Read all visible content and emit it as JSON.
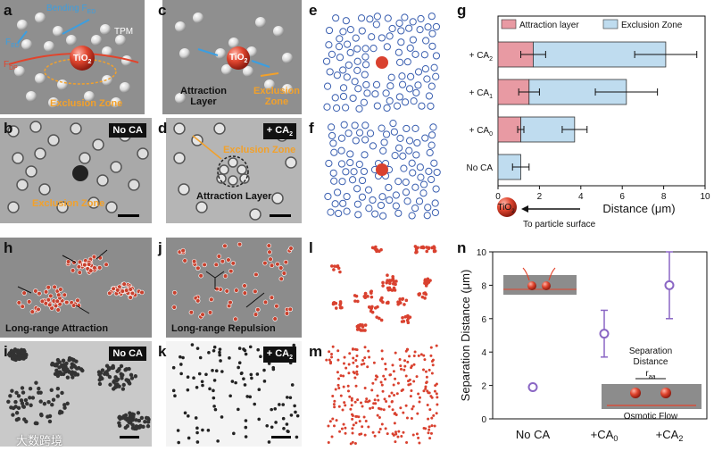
{
  "panel_letters": {
    "a": "a",
    "b": "b",
    "c": "c",
    "d": "d",
    "e": "e",
    "f": "f",
    "g": "g",
    "h": "h",
    "i": "i",
    "j": "j",
    "k": "k",
    "l": "l",
    "m": "m",
    "n": "n"
  },
  "panel_a": {
    "bending": "Bending F",
    "bending_sub": "ED",
    "fed": "F",
    "fed_sub": "ED",
    "fdp": "F",
    "fdp_sub": "DP",
    "tpm": "TPM",
    "tio2": "TiO",
    "tio2_sub": "2",
    "exclusion": "Exclusion Zone"
  },
  "panel_b": {
    "tag": "No CA",
    "exclusion": "Exclusion Zone"
  },
  "panel_c": {
    "tio2": "TiO",
    "tio2_sub": "2",
    "attraction": "Attraction",
    "layer": "Layer",
    "exclusion": "Exclusion",
    "zone": "Zone"
  },
  "panel_d": {
    "tag": "+ CA",
    "tag_sub": "2",
    "exclusion": "Exclusion Zone",
    "attraction": "Attraction Layer"
  },
  "panel_h": {
    "caption": "Long-range Attraction"
  },
  "panel_i": {
    "tag": "No CA"
  },
  "panel_j": {
    "caption": "Long-range Repulsion"
  },
  "panel_k": {
    "tag": "+ CA",
    "tag_sub": "2"
  },
  "colors": {
    "particle": "#d9412f",
    "ring": "#3a5fb0",
    "attraction": "#e89aa3",
    "exclusion": "#bfdcef",
    "violet": "#8a66c4"
  },
  "chart_data": [
    {
      "id": "g",
      "type": "bar",
      "orientation": "horizontal-stacked",
      "legend": [
        "Attraction layer",
        "Exclusion Zone"
      ],
      "categories": [
        "+ CA2",
        "+ CA1",
        "+ CA0",
        "No CA"
      ],
      "category_main": [
        "+ CA",
        "+ CA",
        "+ CA",
        "No CA"
      ],
      "category_sub": [
        "2",
        "1",
        "0",
        ""
      ],
      "series": [
        {
          "name": "Attraction layer",
          "values": [
            1.7,
            1.5,
            1.1,
            0
          ]
        },
        {
          "name": "Exclusion Zone",
          "values": [
            6.4,
            4.7,
            2.6,
            1.1
          ]
        }
      ],
      "totals": [
        8.1,
        6.2,
        3.7,
        1.1
      ],
      "attraction_err": [
        0.6,
        0.5,
        0.15,
        0
      ],
      "total_err": [
        1.5,
        1.5,
        0.6,
        0.4
      ],
      "xlim": [
        0,
        10
      ],
      "xticks": [
        "0",
        "2",
        "4",
        "6",
        "8",
        "10"
      ],
      "xlabel": "Distance (μm)",
      "arrow_label": "To particle surface",
      "tio2": "TiO",
      "tio2_sub": "2"
    },
    {
      "id": "n",
      "type": "scatter",
      "categories": [
        "No CA",
        "+CA0",
        "+CA2"
      ],
      "category_main": [
        "No CA",
        "+CA",
        "+CA"
      ],
      "category_sub": [
        "",
        "0",
        "2"
      ],
      "values": [
        1.9,
        5.1,
        8.0
      ],
      "err_low": [
        0.15,
        1.4,
        2.0
      ],
      "err_high": [
        0.15,
        1.4,
        2.0
      ],
      "ylim": [
        0,
        10
      ],
      "yticks": [
        "0",
        "2",
        "4",
        "6",
        "8",
        "10"
      ],
      "ylabel": "Separation Distance (μm)",
      "annot_sep1": "Separation",
      "annot_sep2": "Distance",
      "annot_raa": "r",
      "annot_raa_sub": "aa",
      "annot_flow": "Osmotic Flow"
    }
  ],
  "watermark": "大数跨境"
}
